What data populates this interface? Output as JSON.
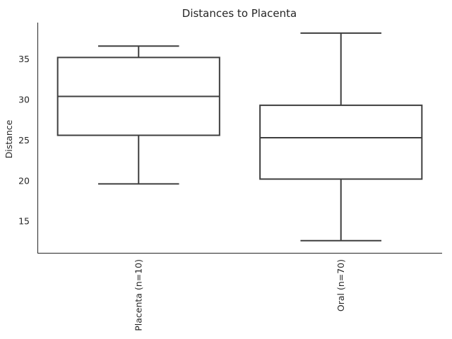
{
  "chart_data": {
    "type": "box",
    "title": "Distances to Placenta",
    "xlabel": "",
    "ylabel": "Distance",
    "ylim": [
      11.1,
      39.5
    ],
    "yticks": [
      15,
      20,
      25,
      30,
      35
    ],
    "grid": false,
    "categories": [
      "Placenta (n=10)",
      "Oral (n=70)"
    ],
    "boxes": [
      {
        "label": "Placenta (n=10)",
        "whisker_low": 19.6,
        "q1": 25.6,
        "median": 30.4,
        "q3": 35.2,
        "whisker_high": 36.6
      },
      {
        "label": "Oral (n=70)",
        "whisker_low": 12.6,
        "q1": 20.2,
        "median": 25.3,
        "q3": 29.3,
        "whisker_high": 38.2
      }
    ],
    "colors": {
      "box_edge": "#3f3f3f",
      "box_fill": "#ffffff",
      "text": "#262626"
    }
  }
}
